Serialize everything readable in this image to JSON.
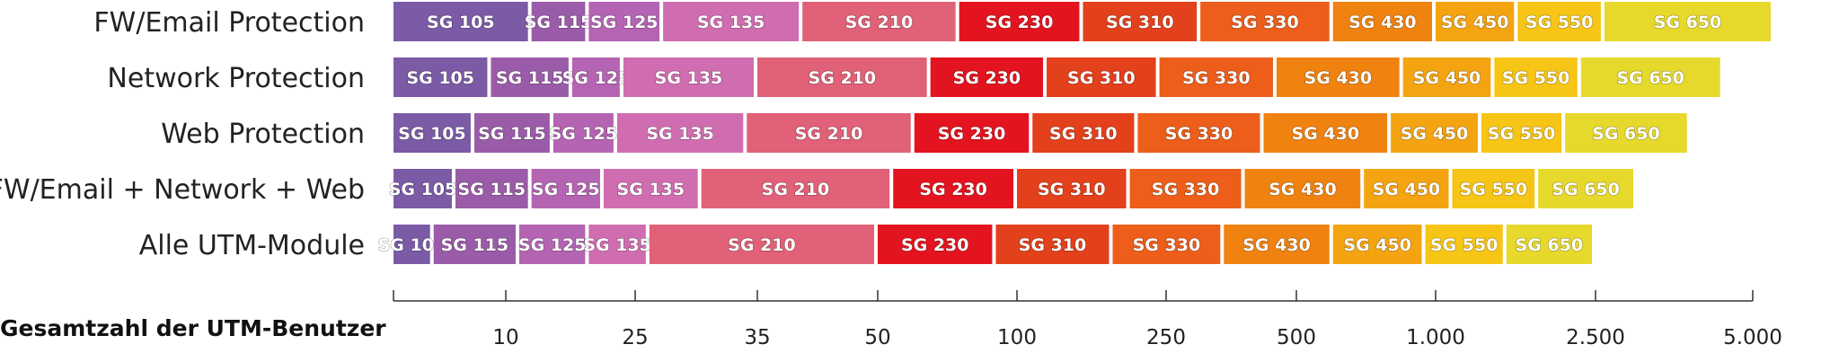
{
  "chart_data": {
    "type": "bar",
    "orientation": "horizontal-segmented",
    "xlabel": "Gesamtzahl der UTM-Benutzer",
    "ticks": [
      "10",
      "25",
      "35",
      "50",
      "100",
      "250",
      "500",
      "1.000",
      "2.500",
      "5.000"
    ],
    "models": [
      "SG 105",
      "SG 115",
      "SG 125",
      "SG 135",
      "SG 210",
      "SG 230",
      "SG 310",
      "SG 330",
      "SG 430",
      "SG 450",
      "SG 550",
      "SG 650"
    ],
    "colors": [
      "#7b5aa6",
      "#9a5ca8",
      "#b464b2",
      "#d06db0",
      "#e06178",
      "#e3141f",
      "#e3401c",
      "#ec5e1a",
      "#f0820f",
      "#f4a411",
      "#f6c515",
      "#e7d92c"
    ],
    "series": [
      {
        "name": "FW/Email Protection",
        "max_users": [
          12,
          18,
          27,
          40,
          75,
          150,
          300,
          600,
          1000,
          1600,
          2600,
          5500
        ]
      },
      {
        "name": "Network Protection",
        "max_users": [
          9,
          16,
          23,
          35,
          65,
          120,
          240,
          450,
          850,
          1400,
          2300,
          4400
        ]
      },
      {
        "name": "Web Protection",
        "max_users": [
          8,
          14,
          22,
          34,
          60,
          110,
          210,
          420,
          800,
          1300,
          2100,
          3800
        ]
      },
      {
        "name": "FW/Email + Network + Web",
        "max_users": [
          7,
          12,
          20,
          30,
          54,
          100,
          200,
          380,
          700,
          1100,
          1800,
          3000
        ]
      },
      {
        "name": "Alle UTM-Module",
        "max_users": [
          6,
          11,
          18,
          26,
          50,
          90,
          180,
          340,
          600,
          950,
          1500,
          2500
        ]
      }
    ]
  }
}
